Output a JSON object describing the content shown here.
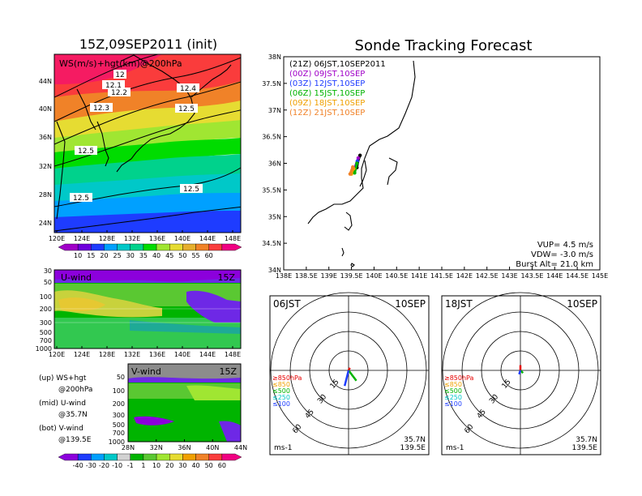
{
  "left": {
    "title": "15Z,09SEP2011 (init)",
    "map_label": "WS(m/s)+hgt(km)@200hPa",
    "lat_ticks": [
      "44N",
      "40N",
      "36N",
      "32N",
      "28N",
      "24N"
    ],
    "lon_ticks": [
      "120E",
      "124E",
      "128E",
      "132E",
      "136E",
      "140E",
      "144E",
      "148E"
    ],
    "contour_labels": [
      "12",
      "12.1",
      "12.2",
      "12.3",
      "12.4",
      "12.5",
      "12.5",
      "12.5",
      "12.5"
    ],
    "colorbar_ticks": [
      "10",
      "15",
      "20",
      "25",
      "30",
      "35",
      "40",
      "45",
      "50",
      "55",
      "60"
    ],
    "colorbar_colors": [
      "#a000c8",
      "#6e00dc",
      "#1e3cff",
      "#00a0ff",
      "#00c8c8",
      "#00d28c",
      "#00dc00",
      "#a0e632",
      "#e6dc32",
      "#e6af2d",
      "#f08228",
      "#fa3c3c",
      "#f00082"
    ]
  },
  "uwind": {
    "label": "U-wind",
    "time": "15Z",
    "p_ticks": [
      "30",
      "50",
      "100",
      "200",
      "300",
      "500",
      "700",
      "1000"
    ],
    "lon_ticks": [
      "120E",
      "124E",
      "128E",
      "132E",
      "136E",
      "140E",
      "144E",
      "148E"
    ]
  },
  "vwind": {
    "label": "V-wind",
    "time": "15Z",
    "p_ticks": [
      "50",
      "100",
      "200",
      "300",
      "500",
      "700",
      "1000"
    ],
    "lat_ticks": [
      "28N",
      "32N",
      "36N",
      "40N",
      "44N"
    ],
    "colorbar_ticks": [
      "-40",
      "-30",
      "-20",
      "-10",
      "-1",
      "1",
      "10",
      "20",
      "30",
      "40",
      "50",
      "60"
    ]
  },
  "notes": [
    {
      "a": "(up) WS+hgt",
      "b": "@200hPa"
    },
    {
      "a": "(mid) U-wind",
      "b": "@35.7N"
    },
    {
      "a": "(bot) V-wind",
      "b": "@139.5E"
    }
  ],
  "track": {
    "title": "Sonde Tracking Forecast",
    "lat_ticks": [
      "38N",
      "37.5N",
      "37N",
      "36.5N",
      "36N",
      "35.5N",
      "35N",
      "34.5N",
      "34N"
    ],
    "lon_ticks": [
      "138E",
      "138.5E",
      "139E",
      "139.5E",
      "140E",
      "140.5E",
      "141E",
      "141.5E",
      "142E",
      "142.5E",
      "143E",
      "143.5E",
      "144E",
      "144.5E",
      "145E"
    ],
    "legend": [
      {
        "text": "(21Z) 06JST,10SEP2011",
        "color": "#000000"
      },
      {
        "text": "(00Z) 09JST,10SEP",
        "color": "#a000c8"
      },
      {
        "text": "(03Z) 12JST,10SEP",
        "color": "#1e3cff"
      },
      {
        "text": "(06Z) 15JST,10SEP",
        "color": "#00b400"
      },
      {
        "text": "(09Z) 18JST,10SEP",
        "color": "#f0a000"
      },
      {
        "text": "(12Z) 21JST,10SEP",
        "color": "#f08228"
      }
    ],
    "params": [
      "VUP= 4.5 m/s",
      "VDW= -3.0 m/s",
      "Burst Alt= 21.0 km"
    ]
  },
  "hodo1": {
    "time": "06JST",
    "date": "10SEP",
    "ring_labels": [
      "15",
      "30",
      "45",
      "60"
    ],
    "levels": [
      {
        "text": "≥850hPa",
        "color": "#e60000"
      },
      {
        "text": "≤850",
        "color": "#f0a000"
      },
      {
        "text": "≤500",
        "color": "#00b400"
      },
      {
        "text": "≤250",
        "color": "#00c8c8"
      },
      {
        "text": "≤100",
        "color": "#1e3cff"
      }
    ],
    "unit": "ms-1",
    "lat": "35.7N",
    "lon": "139.5E"
  },
  "hodo2": {
    "time": "18JST",
    "date": "10SEP",
    "ring_labels": [
      "15",
      "30",
      "45",
      "60"
    ],
    "levels": [
      {
        "text": "≥850hPa",
        "color": "#e60000"
      },
      {
        "text": "≤850",
        "color": "#f0a000"
      },
      {
        "text": "≤500",
        "color": "#00b400"
      },
      {
        "text": "≤250",
        "color": "#00c8c8"
      },
      {
        "text": "≤100",
        "color": "#1e3cff"
      }
    ],
    "unit": "ms-1",
    "lat": "35.7N",
    "lon": "139.5E"
  },
  "chart_data": [
    {
      "type": "heatmap",
      "title": "15Z,09SEP2011 (init)",
      "xlabel": "",
      "ylabel": "",
      "xlim": [
        120,
        150
      ],
      "ylim": [
        22,
        48
      ]
    },
    {
      "type": "heatmap",
      "title": "U-wind",
      "xlim": [
        120,
        150
      ],
      "ylim": [
        1000,
        30
      ]
    },
    {
      "type": "heatmap",
      "title": "V-wind",
      "xlim": [
        28,
        44
      ],
      "ylim": [
        1000,
        30
      ]
    },
    {
      "type": "line",
      "title": "Sonde Tracking Forecast",
      "xlim": [
        138,
        145
      ],
      "ylim": [
        34,
        38
      ],
      "series": [
        {
          "name": "(21Z) 06JST,10SEP2011",
          "x": [
            139.62,
            139.65,
            139.69
          ],
          "y": [
            35.92,
            36.05,
            36.15
          ]
        },
        {
          "name": "(00Z) 09JST,10SEP",
          "x": [
            139.55,
            139.6,
            139.65
          ],
          "y": [
            35.85,
            35.98,
            36.1
          ]
        },
        {
          "name": "(03Z) 12JST,10SEP",
          "x": [
            139.56,
            139.6,
            139.63
          ],
          "y": [
            35.85,
            35.95,
            36.04
          ]
        },
        {
          "name": "(06Z) 15JST,10SEP",
          "x": [
            139.57,
            139.6,
            139.62
          ],
          "y": [
            35.82,
            35.92,
            36.0
          ]
        },
        {
          "name": "(09Z) 18JST,10SEP",
          "x": [
            139.5,
            139.52,
            139.55
          ],
          "y": [
            35.8,
            35.85,
            35.9
          ]
        },
        {
          "name": "(12Z) 21JST,10SEP",
          "x": [
            139.47,
            139.5,
            139.53
          ],
          "y": [
            35.8,
            35.87,
            35.93
          ]
        }
      ]
    },
    {
      "type": "scatter",
      "title": "06JST 10SEP",
      "series": [
        {
          "name": "≥850hPa",
          "u": [
            1
          ],
          "v": [
            2
          ]
        },
        {
          "name": "≤500",
          "u": [
            6
          ],
          "v": [
            -8
          ]
        },
        {
          "name": "≤100",
          "u": [
            -3
          ],
          "v": [
            -12
          ]
        }
      ]
    },
    {
      "type": "scatter",
      "title": "18JST 10SEP",
      "series": [
        {
          "name": "≥850hPa",
          "u": [
            0
          ],
          "v": [
            4
          ]
        },
        {
          "name": "≤500",
          "u": [
            2
          ],
          "v": [
            -2
          ]
        },
        {
          "name": "≤100",
          "u": [
            -1
          ],
          "v": [
            -3
          ]
        }
      ]
    }
  ]
}
